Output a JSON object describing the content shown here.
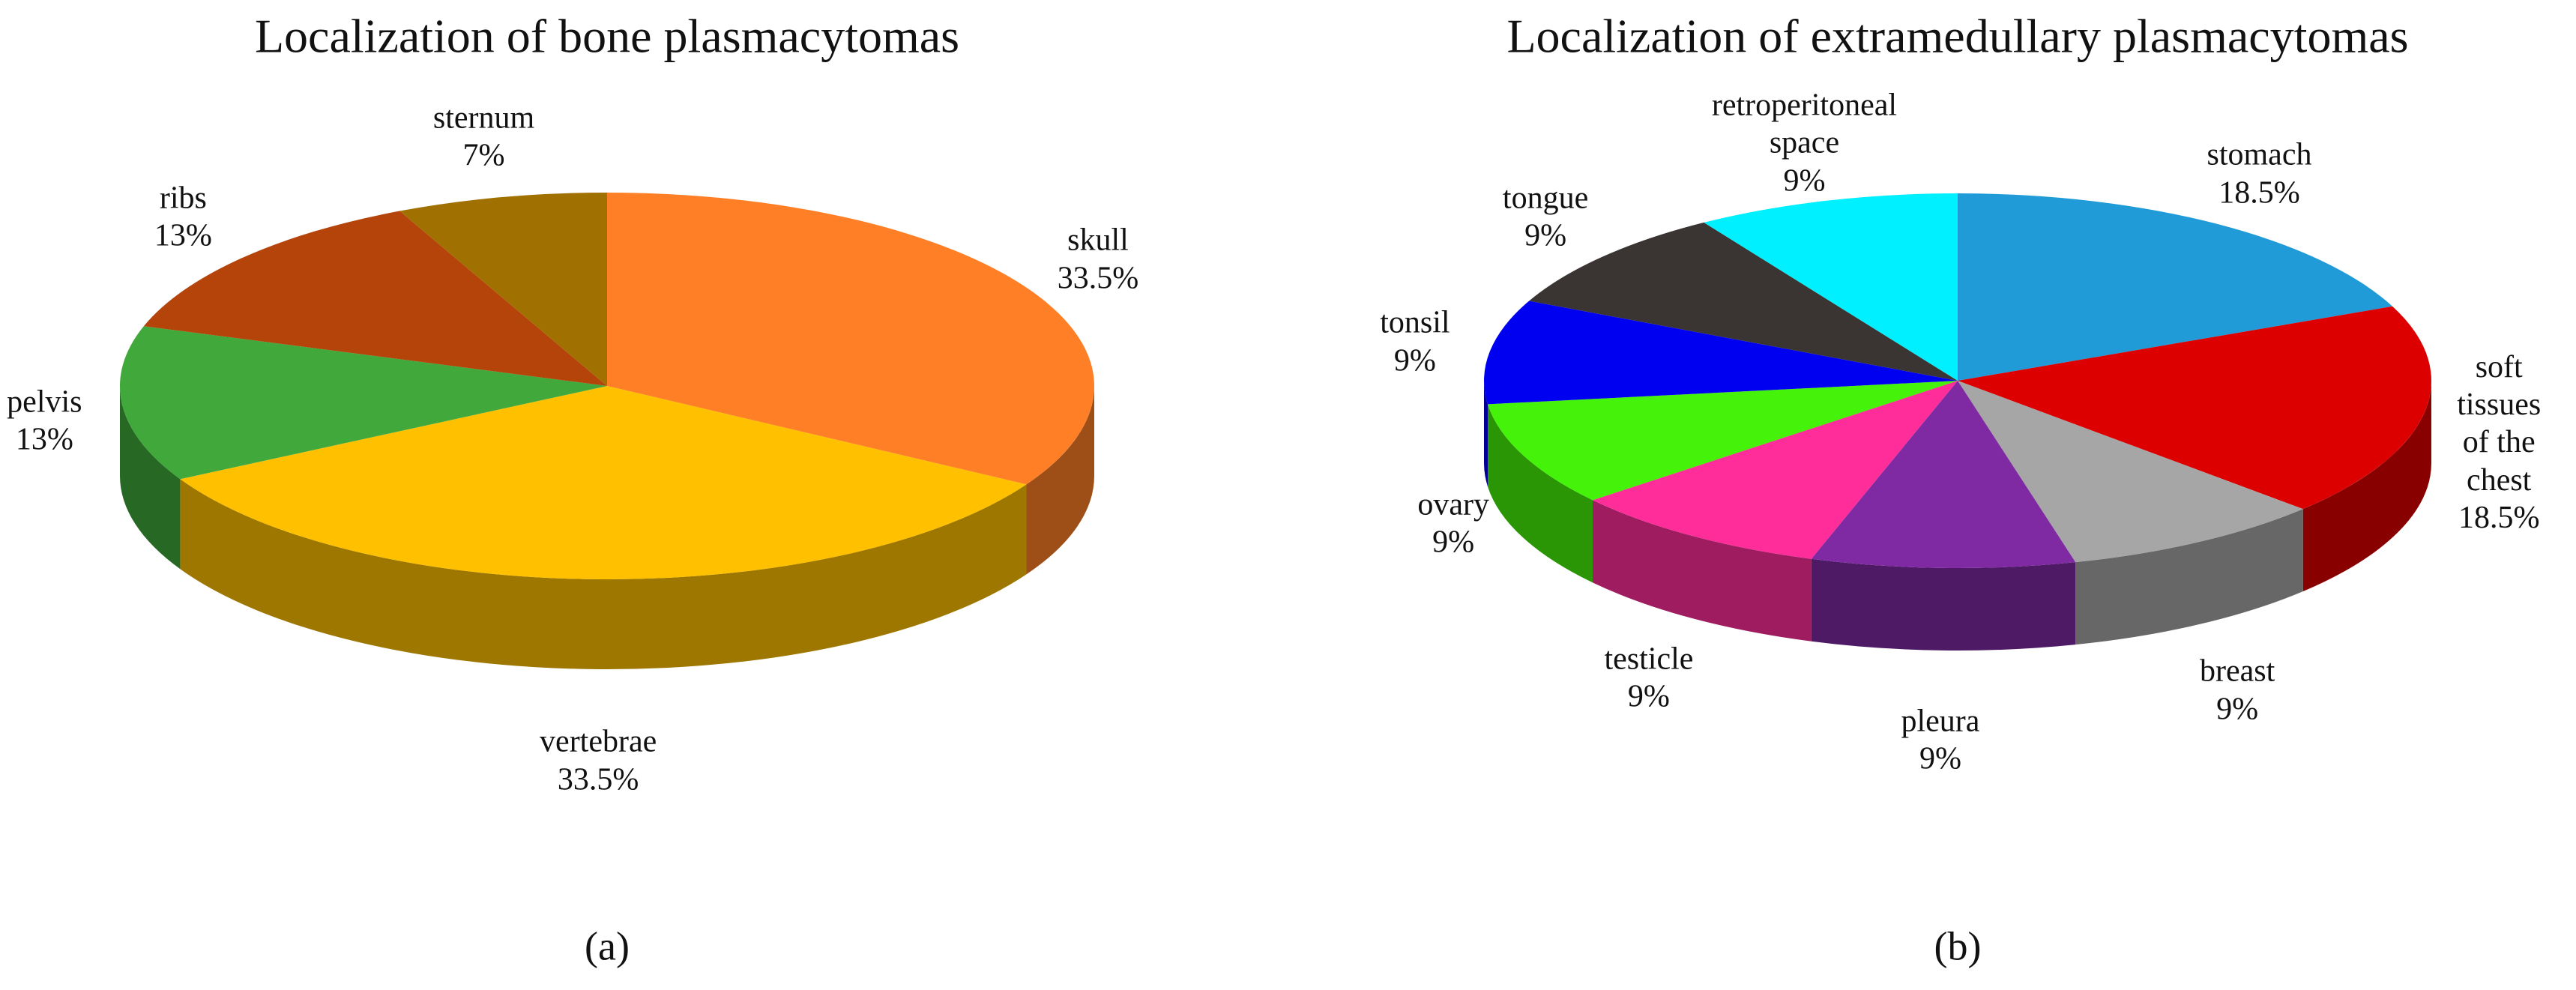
{
  "chart_data": [
    {
      "type": "pie",
      "title": "Localization of bone plasmacytomas",
      "caption": "(a)",
      "categories": [
        "skull",
        "vertebrae",
        "pelvis",
        "ribs",
        "sternum"
      ],
      "values": [
        33.5,
        33.5,
        13,
        13,
        7
      ],
      "value_labels": [
        "33.5%",
        "33.5%",
        "13%",
        "13%",
        "7%"
      ],
      "colors": [
        "#ff7f27",
        "#ffc000",
        "#41a83b",
        "#b5440a",
        "#a07000"
      ]
    },
    {
      "type": "pie",
      "title": "Localization of extramedullary plasmacytomas",
      "caption": "(b)",
      "categories": [
        "stomach",
        "soft tissues of the chest",
        "breast",
        "pleura",
        "testicle",
        "ovary",
        "tonsil",
        "tongue",
        "retroperitoneal space"
      ],
      "values": [
        18.5,
        18.5,
        9,
        9,
        9,
        9,
        9,
        9,
        9
      ],
      "value_labels": [
        "18.5%",
        "18.5%",
        "9%",
        "9%",
        "9%",
        "9%",
        "9%",
        "9%",
        "9%"
      ],
      "colors": [
        "#219ad8",
        "#dd0000",
        "#a6a6a6",
        "#7f2aa3",
        "#ff2d9a",
        "#44f20a",
        "#0000f0",
        "#3a3433",
        "#00f0ff"
      ]
    }
  ]
}
